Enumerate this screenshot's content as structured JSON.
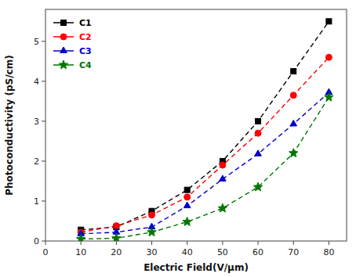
{
  "chart_data": {
    "type": "line",
    "x": [
      10,
      20,
      30,
      40,
      50,
      60,
      70,
      80
    ],
    "series": [
      {
        "name": "C1",
        "color": "#000000",
        "marker": "square",
        "line_style": "dashed",
        "values": [
          0.28,
          0.35,
          0.75,
          1.28,
          2.0,
          3.0,
          4.25,
          5.5
        ]
      },
      {
        "name": "C2",
        "color": "#ff0000",
        "marker": "circle",
        "line_style": "dashed",
        "values": [
          0.22,
          0.38,
          0.65,
          1.1,
          1.9,
          2.7,
          3.65,
          4.6
        ]
      },
      {
        "name": "C3",
        "color": "#0000cc",
        "marker": "triangle",
        "line_style": "dashed",
        "values": [
          0.18,
          0.22,
          0.35,
          0.88,
          1.55,
          2.18,
          2.93,
          3.72
        ]
      },
      {
        "name": "C4",
        "color": "#007700",
        "marker": "star",
        "line_style": "dashed",
        "values": [
          0.05,
          0.07,
          0.22,
          0.48,
          0.82,
          1.35,
          2.2,
          3.6
        ]
      }
    ],
    "xlabel": "Electric Field(V/μm)",
    "ylabel": "Photoconductivity (pS/cm)",
    "xlim": [
      0,
      85
    ],
    "ylim": [
      0,
      5.8
    ],
    "xticks": [
      0,
      10,
      20,
      30,
      40,
      50,
      60,
      70,
      80
    ],
    "yticks": [
      0,
      1,
      2,
      3,
      4,
      5
    ],
    "grid": false,
    "legend": "upper left"
  }
}
